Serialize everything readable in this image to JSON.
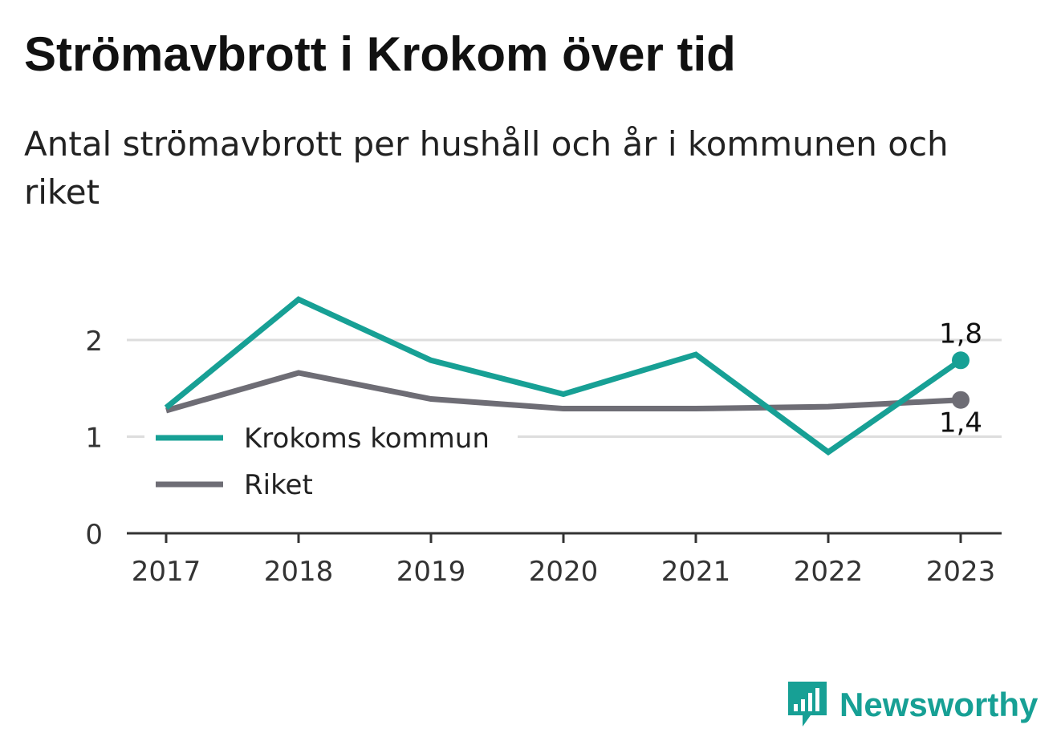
{
  "header": {
    "title": "Strömavbrott i Krokom över tid",
    "subtitle": "Antal strömavbrott per hushåll och år i kommunen och riket"
  },
  "brand": {
    "name": "Newsworthy",
    "color": "#17a095",
    "icon": "newsworthy-logo-icon"
  },
  "chart_data": {
    "type": "line",
    "title": "Strömavbrott i Krokom över tid",
    "subtitle": "Antal strömavbrott per hushåll och år i kommunen och riket",
    "categories": [
      "2017",
      "2018",
      "2019",
      "2020",
      "2021",
      "2022",
      "2023"
    ],
    "series": [
      {
        "name": "Krokoms kommun",
        "color": "#17a095",
        "values": [
          1.3,
          2.42,
          1.79,
          1.44,
          1.85,
          0.84,
          1.79
        ],
        "end_label": "1,8"
      },
      {
        "name": "Riket",
        "color": "#6e6d75",
        "values": [
          1.27,
          1.66,
          1.39,
          1.29,
          1.29,
          1.31,
          1.38
        ],
        "end_label": "1,4"
      }
    ],
    "y_ticks": [
      "0",
      "1",
      "2"
    ],
    "ylim": [
      0,
      2.5
    ],
    "grid": true,
    "legend": "left"
  }
}
